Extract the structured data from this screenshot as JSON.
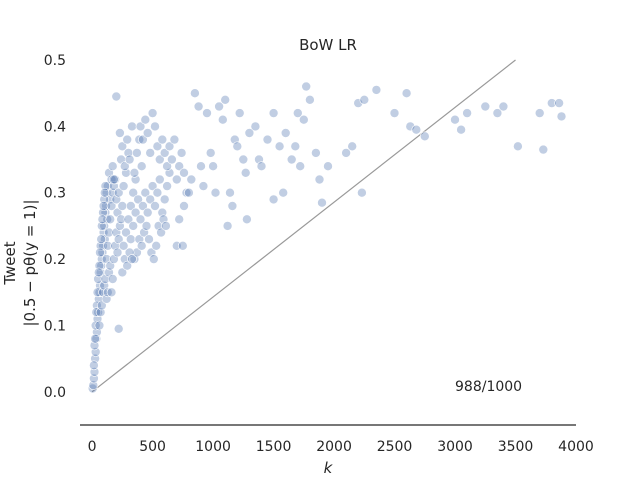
{
  "chart_data": {
    "type": "scatter",
    "title": "BoW LR",
    "xlabel": "k",
    "ylabel_line1": "Tweet",
    "ylabel_line2": "|0.5 − pθ(y = 1)|",
    "xlim": [
      -100,
      4000
    ],
    "ylim": [
      -0.05,
      0.5
    ],
    "xticks": [
      0,
      500,
      1000,
      1500,
      2000,
      2500,
      3000,
      3500,
      4000
    ],
    "yticks": [
      0.0,
      0.1,
      0.2,
      0.3,
      0.4,
      0.5
    ],
    "xtick_labels": [
      "0",
      "500",
      "1000",
      "1500",
      "2000",
      "2500",
      "3000",
      "3500",
      "4000"
    ],
    "ytick_labels": [
      "0.0",
      "0.1",
      "0.2",
      "0.3",
      "0.4",
      "0.5"
    ],
    "grid": false,
    "annotation": "988/1000",
    "annotation_pos": {
      "x": 3000,
      "y": 0.0
    },
    "reference_line": {
      "x": [
        0,
        3500
      ],
      "y": [
        0.0,
        0.5
      ]
    },
    "point_color": "#4c72b0",
    "point_opacity": 0.35,
    "line_color": "#999999",
    "axis_color": "#262626",
    "points": [
      [
        5,
        0.005
      ],
      [
        10,
        0.01
      ],
      [
        15,
        0.02
      ],
      [
        20,
        0.03
      ],
      [
        25,
        0.05
      ],
      [
        30,
        0.06
      ],
      [
        35,
        0.08
      ],
      [
        40,
        0.09
      ],
      [
        45,
        0.11
      ],
      [
        50,
        0.12
      ],
      [
        55,
        0.14
      ],
      [
        60,
        0.15
      ],
      [
        65,
        0.16
      ],
      [
        70,
        0.18
      ],
      [
        75,
        0.19
      ],
      [
        80,
        0.2
      ],
      [
        85,
        0.21
      ],
      [
        90,
        0.22
      ],
      [
        95,
        0.24
      ],
      [
        100,
        0.25
      ],
      [
        105,
        0.23
      ],
      [
        110,
        0.27
      ],
      [
        115,
        0.28
      ],
      [
        120,
        0.3
      ],
      [
        125,
        0.26
      ],
      [
        130,
        0.31
      ],
      [
        140,
        0.33
      ],
      [
        150,
        0.29
      ],
      [
        160,
        0.32
      ],
      [
        170,
        0.34
      ],
      [
        20,
        0.07
      ],
      [
        30,
        0.1
      ],
      [
        40,
        0.13
      ],
      [
        50,
        0.17
      ],
      [
        60,
        0.19
      ],
      [
        70,
        0.22
      ],
      [
        80,
        0.25
      ],
      [
        90,
        0.27
      ],
      [
        100,
        0.29
      ],
      [
        110,
        0.31
      ],
      [
        15,
        0.04
      ],
      [
        25,
        0.08
      ],
      [
        35,
        0.12
      ],
      [
        45,
        0.15
      ],
      [
        55,
        0.18
      ],
      [
        65,
        0.21
      ],
      [
        75,
        0.23
      ],
      [
        85,
        0.26
      ],
      [
        95,
        0.28
      ],
      [
        105,
        0.3
      ],
      [
        120,
        0.2
      ],
      [
        130,
        0.22
      ],
      [
        140,
        0.24
      ],
      [
        150,
        0.26
      ],
      [
        160,
        0.28
      ],
      [
        170,
        0.3
      ],
      [
        180,
        0.31
      ],
      [
        190,
        0.32
      ],
      [
        200,
        0.29
      ],
      [
        210,
        0.27
      ],
      [
        60,
        0.1
      ],
      [
        70,
        0.12
      ],
      [
        80,
        0.13
      ],
      [
        90,
        0.15
      ],
      [
        100,
        0.16
      ],
      [
        110,
        0.17
      ],
      [
        120,
        0.14
      ],
      [
        130,
        0.15
      ],
      [
        140,
        0.18
      ],
      [
        150,
        0.19
      ],
      [
        160,
        0.15
      ],
      [
        170,
        0.17
      ],
      [
        180,
        0.2
      ],
      [
        190,
        0.22
      ],
      [
        200,
        0.24
      ],
      [
        210,
        0.21
      ],
      [
        220,
        0.23
      ],
      [
        230,
        0.25
      ],
      [
        240,
        0.26
      ],
      [
        250,
        0.28
      ],
      [
        200,
        0.445
      ],
      [
        180,
        0.32
      ],
      [
        220,
        0.3
      ],
      [
        240,
        0.35
      ],
      [
        260,
        0.31
      ],
      [
        280,
        0.33
      ],
      [
        300,
        0.36
      ],
      [
        320,
        0.28
      ],
      [
        340,
        0.3
      ],
      [
        360,
        0.32
      ],
      [
        230,
        0.39
      ],
      [
        250,
        0.37
      ],
      [
        270,
        0.34
      ],
      [
        290,
        0.38
      ],
      [
        310,
        0.35
      ],
      [
        330,
        0.4
      ],
      [
        350,
        0.33
      ],
      [
        370,
        0.36
      ],
      [
        390,
        0.38
      ],
      [
        410,
        0.34
      ],
      [
        400,
        0.4
      ],
      [
        420,
        0.38
      ],
      [
        440,
        0.41
      ],
      [
        460,
        0.39
      ],
      [
        480,
        0.36
      ],
      [
        500,
        0.42
      ],
      [
        520,
        0.4
      ],
      [
        540,
        0.37
      ],
      [
        560,
        0.35
      ],
      [
        580,
        0.38
      ],
      [
        260,
        0.22
      ],
      [
        280,
        0.24
      ],
      [
        300,
        0.26
      ],
      [
        320,
        0.23
      ],
      [
        340,
        0.25
      ],
      [
        360,
        0.27
      ],
      [
        380,
        0.29
      ],
      [
        400,
        0.26
      ],
      [
        420,
        0.28
      ],
      [
        440,
        0.3
      ],
      [
        460,
        0.27
      ],
      [
        480,
        0.29
      ],
      [
        500,
        0.31
      ],
      [
        520,
        0.28
      ],
      [
        540,
        0.3
      ],
      [
        560,
        0.32
      ],
      [
        580,
        0.27
      ],
      [
        600,
        0.29
      ],
      [
        620,
        0.31
      ],
      [
        640,
        0.33
      ],
      [
        350,
        0.2
      ],
      [
        370,
        0.21
      ],
      [
        390,
        0.23
      ],
      [
        410,
        0.22
      ],
      [
        430,
        0.24
      ],
      [
        450,
        0.25
      ],
      [
        470,
        0.23
      ],
      [
        490,
        0.21
      ],
      [
        510,
        0.2
      ],
      [
        530,
        0.22
      ],
      [
        220,
        0.095
      ],
      [
        250,
        0.18
      ],
      [
        270,
        0.2
      ],
      [
        290,
        0.19
      ],
      [
        310,
        0.21
      ],
      [
        330,
        0.2
      ],
      [
        550,
        0.25
      ],
      [
        570,
        0.24
      ],
      [
        590,
        0.26
      ],
      [
        610,
        0.25
      ],
      [
        600,
        0.36
      ],
      [
        620,
        0.34
      ],
      [
        640,
        0.37
      ],
      [
        660,
        0.35
      ],
      [
        680,
        0.38
      ],
      [
        700,
        0.32
      ],
      [
        720,
        0.34
      ],
      [
        740,
        0.36
      ],
      [
        760,
        0.33
      ],
      [
        780,
        0.3
      ],
      [
        700,
        0.22
      ],
      [
        750,
        0.22
      ],
      [
        720,
        0.26
      ],
      [
        760,
        0.28
      ],
      [
        800,
        0.3
      ],
      [
        820,
        0.32
      ],
      [
        850,
        0.45
      ],
      [
        880,
        0.43
      ],
      [
        900,
        0.34
      ],
      [
        920,
        0.31
      ],
      [
        950,
        0.42
      ],
      [
        980,
        0.36
      ],
      [
        1000,
        0.34
      ],
      [
        1020,
        0.3
      ],
      [
        1050,
        0.43
      ],
      [
        1080,
        0.41
      ],
      [
        1100,
        0.44
      ],
      [
        1120,
        0.25
      ],
      [
        1140,
        0.3
      ],
      [
        1160,
        0.28
      ],
      [
        1180,
        0.38
      ],
      [
        1200,
        0.37
      ],
      [
        1220,
        0.42
      ],
      [
        1250,
        0.35
      ],
      [
        1270,
        0.33
      ],
      [
        1280,
        0.26
      ],
      [
        1300,
        0.39
      ],
      [
        1350,
        0.4
      ],
      [
        1380,
        0.35
      ],
      [
        1400,
        0.34
      ],
      [
        1450,
        0.38
      ],
      [
        1500,
        0.42
      ],
      [
        1550,
        0.37
      ],
      [
        1600,
        0.39
      ],
      [
        1650,
        0.35
      ],
      [
        1680,
        0.37
      ],
      [
        1700,
        0.42
      ],
      [
        1720,
        0.34
      ],
      [
        1750,
        0.41
      ],
      [
        1770,
        0.46
      ],
      [
        1800,
        0.44
      ],
      [
        1850,
        0.36
      ],
      [
        1880,
        0.32
      ],
      [
        1900,
        0.285
      ],
      [
        1950,
        0.34
      ],
      [
        2100,
        0.36
      ],
      [
        2150,
        0.37
      ],
      [
        2200,
        0.435
      ],
      [
        2230,
        0.3
      ],
      [
        2250,
        0.44
      ],
      [
        2350,
        0.455
      ],
      [
        2500,
        0.42
      ],
      [
        2600,
        0.45
      ],
      [
        2630,
        0.4
      ],
      [
        2680,
        0.395
      ],
      [
        2750,
        0.385
      ],
      [
        3000,
        0.41
      ],
      [
        3050,
        0.395
      ],
      [
        3100,
        0.42
      ],
      [
        3250,
        0.43
      ],
      [
        3350,
        0.42
      ],
      [
        3400,
        0.43
      ],
      [
        3520,
        0.37
      ],
      [
        3700,
        0.42
      ],
      [
        3730,
        0.365
      ],
      [
        3800,
        0.435
      ],
      [
        3860,
        0.435
      ],
      [
        3880,
        0.415
      ],
      [
        1580,
        0.3
      ],
      [
        1500,
        0.29
      ]
    ]
  }
}
